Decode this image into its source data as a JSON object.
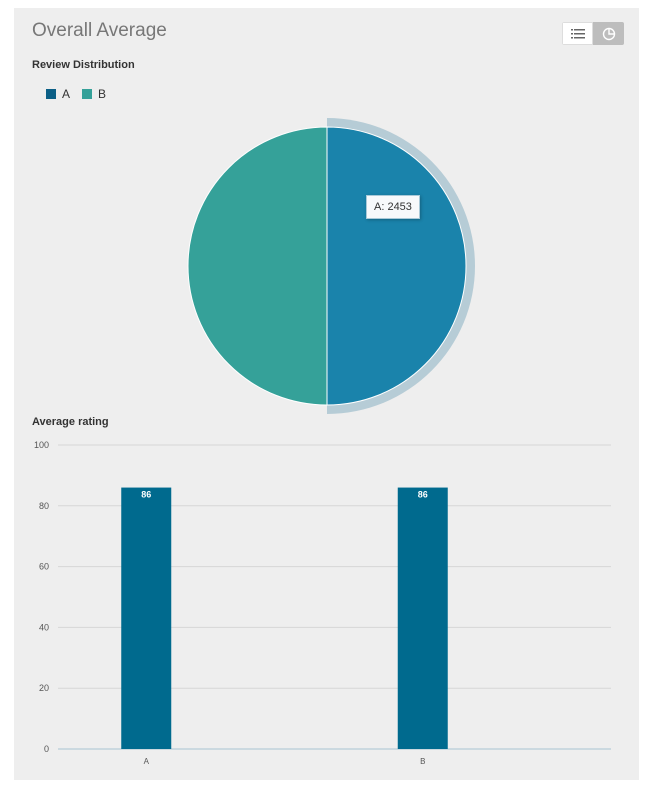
{
  "header": {
    "title": "Overall Average",
    "list_view_icon": "list-icon",
    "pie_view_icon": "pie-chart-icon"
  },
  "colors": {
    "series_a": "#1a83ab",
    "series_a_legend": "#0b5f86",
    "series_b": "#35a199",
    "hover_ring": "#b6ccd6",
    "bar": "#006a8e",
    "grid": "#d6d6d6"
  },
  "chart_data": [
    {
      "type": "pie",
      "title": "Review Distribution",
      "legend_position": "top-left",
      "slices": [
        {
          "label": "A",
          "value": 2453,
          "color": "#1a83ab"
        },
        {
          "label": "B",
          "value": 2453,
          "color": "#35a199"
        }
      ],
      "highlighted": "A",
      "tooltip": "A: 2453"
    },
    {
      "type": "bar",
      "title": "Average rating",
      "categories": [
        "A",
        "B"
      ],
      "values": [
        86,
        86
      ],
      "data_labels": [
        "86",
        "86"
      ],
      "ylim": [
        0,
        100
      ],
      "yticks": [
        "0",
        "20",
        "40",
        "60",
        "80",
        "100"
      ],
      "grid": true,
      "xlabel": "",
      "ylabel": ""
    }
  ]
}
